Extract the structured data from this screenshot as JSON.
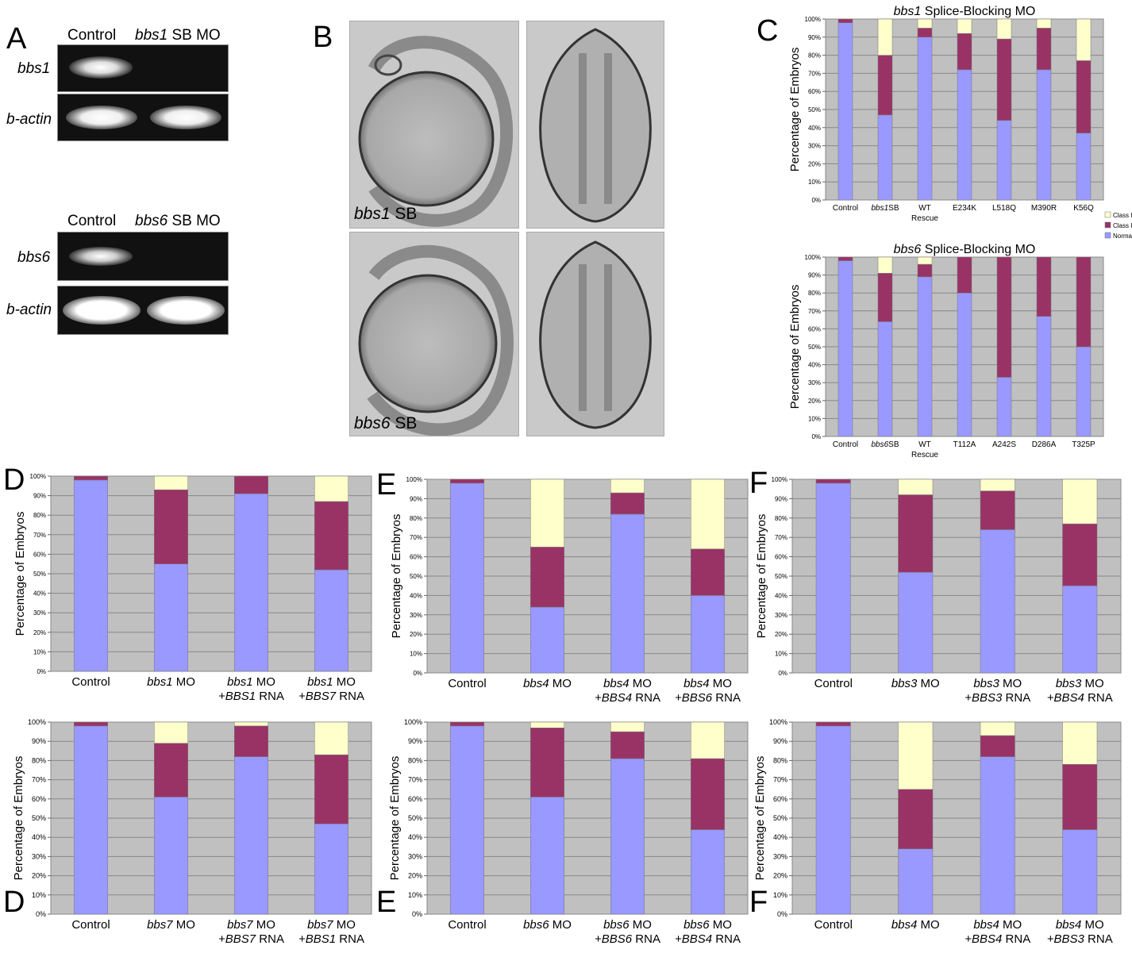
{
  "colors": {
    "normal": "#9999ff",
    "class1": "#993366",
    "class2": "#ffffcc",
    "plot_bg": "#c0c0c0",
    "grid": "#888888"
  },
  "panel_a": {
    "label": "A",
    "gel1": {
      "col1": "Control",
      "col2_italic": "bbs1",
      "col2_rest": " SB MO",
      "row1": "bbs1",
      "row2": "b-actin"
    },
    "gel2": {
      "col1": "Control",
      "col2_italic": "bbs6",
      "col2_rest": " SB MO",
      "row1": "bbs6",
      "row2": "b-actin"
    }
  },
  "panel_b": {
    "label": "B",
    "top_label_italic": "bbs1",
    "top_label_rest": " SB",
    "bottom_label_italic": "bbs6",
    "bottom_label_rest": " SB"
  },
  "panel_c": {
    "label": "C"
  },
  "panel_d": {
    "label": "D",
    "label2": "D"
  },
  "panel_e": {
    "label": "E",
    "label2": "E"
  },
  "panel_f": {
    "label": "F",
    "label2": "F"
  },
  "chart_data": [
    {
      "id": "C-top",
      "type": "bar",
      "stacked": true,
      "title_italic": "bbs1",
      "title_rest": " Splice-Blocking MO",
      "ylabel": "Percentage of Embryos",
      "ylim": [
        0,
        100
      ],
      "yticks": [
        "0%",
        "10%",
        "20%",
        "30%",
        "40%",
        "50%",
        "60%",
        "70%",
        "80%",
        "90%",
        "100%"
      ],
      "categories": [
        [
          "Control"
        ],
        [
          "bbs1SB"
        ],
        [
          "WT",
          "Rescue"
        ],
        [
          "E234K"
        ],
        [
          "L518Q"
        ],
        [
          "M390R"
        ],
        [
          "K56Q"
        ]
      ],
      "series": [
        {
          "name": "Normal",
          "values": [
            98,
            47,
            90,
            72,
            44,
            72,
            37
          ]
        },
        {
          "name": "Class I",
          "values": [
            2,
            33,
            5,
            20,
            45,
            23,
            40
          ]
        },
        {
          "name": "Class II",
          "values": [
            0,
            20,
            5,
            8,
            11,
            5,
            23
          ]
        }
      ],
      "legend": [
        "Class II",
        "Class I",
        "Normal"
      ],
      "legend_position": "right",
      "grid": true
    },
    {
      "id": "C-bottom",
      "type": "bar",
      "stacked": true,
      "title_italic": "bbs6",
      "title_rest": " Splice-Blocking MO",
      "ylabel": "Percentage of Embryos",
      "ylim": [
        0,
        100
      ],
      "yticks": [
        "0%",
        "10%",
        "20%",
        "30%",
        "40%",
        "50%",
        "60%",
        "70%",
        "80%",
        "90%",
        "100%"
      ],
      "categories": [
        [
          "Control"
        ],
        [
          "bbs6SB"
        ],
        [
          "WT",
          "Rescue"
        ],
        [
          "T112A"
        ],
        [
          "A242S"
        ],
        [
          "D286A"
        ],
        [
          "T325P"
        ]
      ],
      "series": [
        {
          "name": "Normal",
          "values": [
            98,
            64,
            89,
            80,
            33,
            67,
            50
          ]
        },
        {
          "name": "Class I",
          "values": [
            2,
            27,
            7,
            20,
            67,
            33,
            50
          ]
        },
        {
          "name": "Class II",
          "values": [
            0,
            9,
            4,
            0,
            0,
            0,
            0
          ]
        }
      ],
      "grid": true
    },
    {
      "id": "D-top",
      "type": "bar",
      "stacked": true,
      "ylabel": "Percentage of Embryos",
      "ylim": [
        0,
        100
      ],
      "yticks": [
        "0%",
        "10%",
        "20%",
        "30%",
        "40%",
        "50%",
        "60%",
        "70%",
        "80%",
        "90%",
        "100%"
      ],
      "categories": [
        [
          "Control"
        ],
        [
          "bbs1 MO"
        ],
        [
          "bbs1 MO",
          "+BBS1 RNA"
        ],
        [
          "bbs1 MO",
          "+BBS7 RNA"
        ]
      ],
      "series": [
        {
          "name": "Normal",
          "values": [
            98,
            55,
            91,
            52
          ]
        },
        {
          "name": "Class I",
          "values": [
            2,
            38,
            9,
            35
          ]
        },
        {
          "name": "Class II",
          "values": [
            0,
            7,
            0,
            13
          ]
        }
      ],
      "grid": true
    },
    {
      "id": "D-bottom",
      "type": "bar",
      "stacked": true,
      "ylabel": "Percentage of Embryos",
      "ylim": [
        0,
        100
      ],
      "yticks": [
        "0%",
        "10%",
        "20%",
        "30%",
        "40%",
        "50%",
        "60%",
        "70%",
        "80%",
        "90%",
        "100%"
      ],
      "categories": [
        [
          "Control"
        ],
        [
          "bbs7 MO"
        ],
        [
          "bbs7 MO",
          "+BBS7 RNA"
        ],
        [
          "bbs7 MO",
          "+BBS1 RNA"
        ]
      ],
      "series": [
        {
          "name": "Normal",
          "values": [
            98,
            61,
            82,
            47
          ]
        },
        {
          "name": "Class I",
          "values": [
            2,
            28,
            16,
            36
          ]
        },
        {
          "name": "Class II",
          "values": [
            0,
            11,
            2,
            17
          ]
        }
      ],
      "grid": true
    },
    {
      "id": "E-top",
      "type": "bar",
      "stacked": true,
      "ylabel": "Percentage of Embryos",
      "ylim": [
        0,
        100
      ],
      "yticks": [
        "0%",
        "10%",
        "20%",
        "30%",
        "40%",
        "50%",
        "60%",
        "70%",
        "80%",
        "90%",
        "100%"
      ],
      "categories": [
        [
          "Control"
        ],
        [
          "bbs4 MO"
        ],
        [
          "bbs4 MO",
          "+BBS4 RNA"
        ],
        [
          "bbs4 MO",
          "+BBS6 RNA"
        ]
      ],
      "series": [
        {
          "name": "Normal",
          "values": [
            98,
            34,
            82,
            40
          ]
        },
        {
          "name": "Class I",
          "values": [
            2,
            31,
            11,
            24
          ]
        },
        {
          "name": "Class II",
          "values": [
            0,
            35,
            7,
            36
          ]
        }
      ],
      "grid": true
    },
    {
      "id": "E-bottom",
      "type": "bar",
      "stacked": true,
      "ylabel": "Percentage of Embryos",
      "ylim": [
        0,
        100
      ],
      "yticks": [
        "0%",
        "10%",
        "20%",
        "30%",
        "40%",
        "50%",
        "60%",
        "70%",
        "80%",
        "90%",
        "100%"
      ],
      "categories": [
        [
          "Control"
        ],
        [
          "bbs6 MO"
        ],
        [
          "bbs6 MO",
          "+BBS6 RNA"
        ],
        [
          "bbs6 MO",
          "+BBS4 RNA"
        ]
      ],
      "series": [
        {
          "name": "Normal",
          "values": [
            98,
            61,
            81,
            44
          ]
        },
        {
          "name": "Class I",
          "values": [
            2,
            36,
            14,
            37
          ]
        },
        {
          "name": "Class II",
          "values": [
            0,
            3,
            5,
            19
          ]
        }
      ],
      "grid": true
    },
    {
      "id": "F-top",
      "type": "bar",
      "stacked": true,
      "ylabel": "Percentage of Embryos",
      "ylim": [
        0,
        100
      ],
      "yticks": [
        "0%",
        "10%",
        "20%",
        "30%",
        "40%",
        "50%",
        "60%",
        "70%",
        "80%",
        "90%",
        "100%"
      ],
      "categories": [
        [
          "Control"
        ],
        [
          "bbs3 MO"
        ],
        [
          "bbs3 MO",
          "+BBS3 RNA"
        ],
        [
          "bbs3 MO",
          "+BBS4 RNA"
        ]
      ],
      "series": [
        {
          "name": "Normal",
          "values": [
            98,
            52,
            74,
            45
          ]
        },
        {
          "name": "Class I",
          "values": [
            2,
            40,
            20,
            32
          ]
        },
        {
          "name": "Class II",
          "values": [
            0,
            8,
            6,
            23
          ]
        }
      ],
      "grid": true
    },
    {
      "id": "F-bottom",
      "type": "bar",
      "stacked": true,
      "ylabel": "Percentage of Embryos",
      "ylim": [
        0,
        100
      ],
      "yticks": [
        "0%",
        "10%",
        "20%",
        "30%",
        "40%",
        "50%",
        "60%",
        "70%",
        "80%",
        "90%",
        "100%"
      ],
      "categories": [
        [
          "Control"
        ],
        [
          "bbs4 MO"
        ],
        [
          "bbs4 MO",
          "+BBS4 RNA"
        ],
        [
          "bbs4 MO",
          "+BBS3 RNA"
        ]
      ],
      "series": [
        {
          "name": "Normal",
          "values": [
            98,
            34,
            82,
            44
          ]
        },
        {
          "name": "Class I",
          "values": [
            2,
            31,
            11,
            34
          ]
        },
        {
          "name": "Class II",
          "values": [
            0,
            35,
            7,
            22
          ]
        }
      ],
      "grid": true
    }
  ]
}
